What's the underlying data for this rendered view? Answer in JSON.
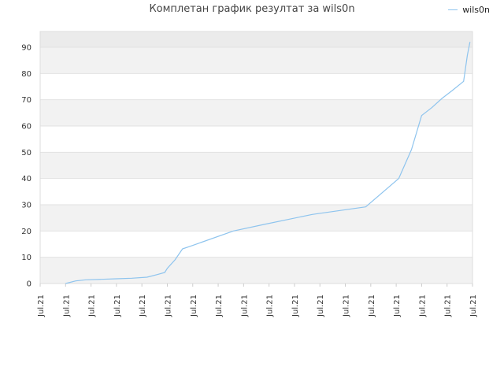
{
  "chart_data": {
    "type": "line",
    "title": "Комплетан график резултат за wils0n",
    "legend": "top-right",
    "grid": true,
    "ylim": [
      0,
      96
    ],
    "yticks": [
      0,
      10,
      20,
      30,
      40,
      50,
      60,
      70,
      80,
      90
    ],
    "xtick_labels": [
      "Jul.21",
      "Jul.21",
      "Jul.21",
      "Jul.21",
      "Jul.21",
      "Jul.21",
      "Jul.21",
      "Jul.21",
      "Jul.21",
      "Jul.21",
      "Jul.21",
      "Jul.21",
      "Jul.21",
      "Jul.21",
      "Jul.21",
      "Jul.21",
      "Jul.21",
      "Jul.21"
    ],
    "colors": {
      "line": "#8ec4ee",
      "band_shaded": "#f2f2f2",
      "band_top": "#ebebeb"
    },
    "series": [
      {
        "name": "wils0n",
        "x": [
          1.0,
          1.4,
          1.8,
          2.4,
          3.0,
          3.6,
          4.2,
          4.6,
          4.9,
          5.0,
          5.3,
          5.6,
          5.85,
          7.6,
          8.8,
          10.7,
          12.8,
          14.1,
          14.6,
          15.0,
          15.4,
          15.8,
          16.2,
          16.65,
          16.8,
          16.9
        ],
        "y": [
          0,
          1,
          1.4,
          1.6,
          1.8,
          2.0,
          2.4,
          3.4,
          4.2,
          5.8,
          9.0,
          13.2,
          14.0,
          20.0,
          22.5,
          26.3,
          29.2,
          40.0,
          51.0,
          64.0,
          67.0,
          70.5,
          73.5,
          77.0,
          87.0,
          92.0
        ]
      }
    ]
  }
}
